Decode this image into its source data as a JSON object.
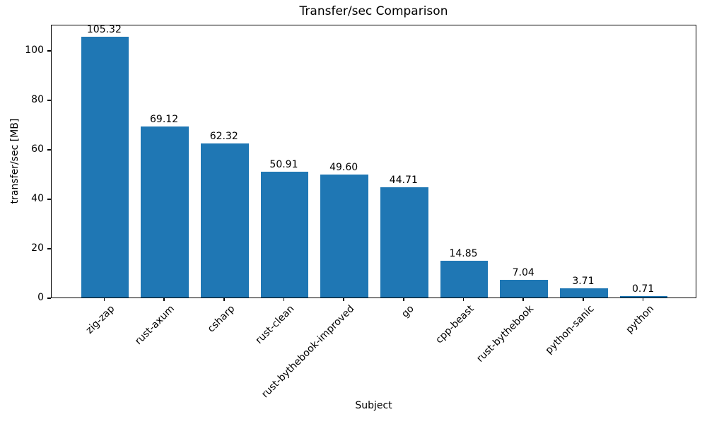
{
  "chart_data": {
    "type": "bar",
    "title": "Transfer/sec Comparison",
    "xlabel": "Subject",
    "ylabel": "transfer/sec [MB]",
    "categories": [
      "zig-zap",
      "rust-axum",
      "csharp",
      "rust-clean",
      "rust-bythebook-improved",
      "go",
      "cpp-beast",
      "rust-bythebook",
      "python-sanic",
      "python"
    ],
    "values": [
      105.32,
      69.12,
      62.32,
      50.91,
      49.6,
      44.71,
      14.85,
      7.04,
      3.71,
      0.71
    ],
    "value_labels": [
      "105.32",
      "69.12",
      "62.32",
      "50.91",
      "49.60",
      "44.71",
      "14.85",
      "7.04",
      "3.71",
      "0.71"
    ],
    "bar_color": "#1f77b4",
    "axis_color": "#000000",
    "ylim": [
      0,
      110.59
    ],
    "yticks": [
      0,
      20,
      40,
      60,
      80,
      100
    ],
    "grid": false,
    "legend": null,
    "x_tick_rotation_deg": 45
  }
}
